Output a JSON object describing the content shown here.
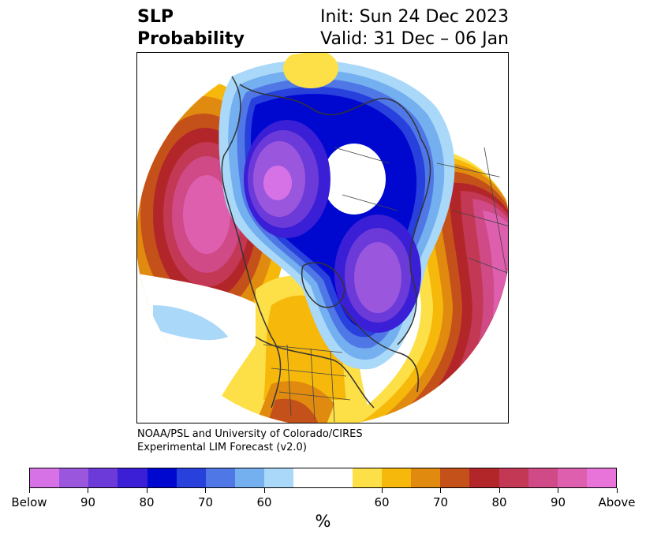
{
  "header": {
    "variable": "SLP",
    "product": "Probability",
    "init": "Init: Sun 24 Dec 2023",
    "valid": "Valid: 31 Dec – 06 Jan"
  },
  "credit": {
    "line1": "NOAA/PSL and University of Colorado/CIRES",
    "line2": "Experimental LIM Forecast (v2.0)"
  },
  "colorbar": {
    "colors": [
      "#d772e6",
      "#9a57de",
      "#6b3ad8",
      "#3a1fd6",
      "#0008d0",
      "#2840dc",
      "#4f78e6",
      "#74b0f0",
      "#aad8f8",
      "#ffffff",
      "#ffffff",
      "#fde047",
      "#f6b80b",
      "#e08a10",
      "#c5511a",
      "#b2262a",
      "#c23855",
      "#cf4a86",
      "#dd5fae",
      "#e874da"
    ],
    "ticks": [
      "Below",
      "90",
      "80",
      "70",
      "60",
      "",
      "60",
      "70",
      "80",
      "90",
      "Above"
    ],
    "unit": "%"
  }
}
